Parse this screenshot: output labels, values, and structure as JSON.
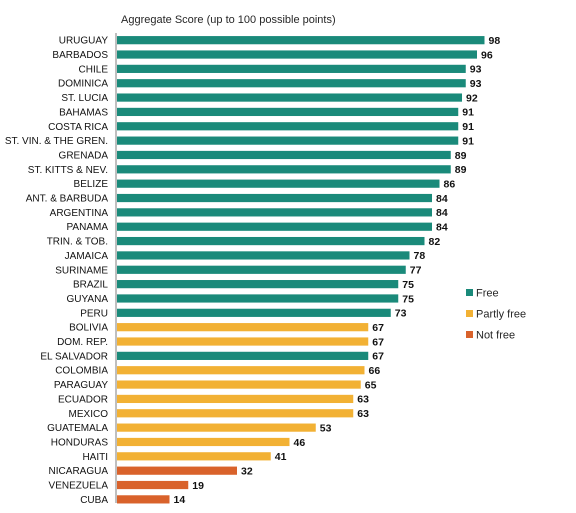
{
  "chart_data": {
    "type": "bar",
    "orientation": "horizontal",
    "title": "Aggregate Score (up to 100 possible points)",
    "xlim": [
      0,
      100
    ],
    "grid": false,
    "legend_position": "right",
    "colors": {
      "Free": "#1a8a7a",
      "Partly free": "#f2b134",
      "Not free": "#d9622b"
    },
    "legend": [
      {
        "label": "Free",
        "status": "Free"
      },
      {
        "label": "Partly free",
        "status": "Partly free"
      },
      {
        "label": "Not free",
        "status": "Not free"
      }
    ],
    "bars": [
      {
        "category": "URUGUAY",
        "value": 98,
        "status": "Free"
      },
      {
        "category": "BARBADOS",
        "value": 96,
        "status": "Free"
      },
      {
        "category": "CHILE",
        "value": 93,
        "status": "Free"
      },
      {
        "category": "DOMINICA",
        "value": 93,
        "status": "Free"
      },
      {
        "category": "ST. LUCIA",
        "value": 92,
        "status": "Free"
      },
      {
        "category": "BAHAMAS",
        "value": 91,
        "status": "Free"
      },
      {
        "category": "COSTA RICA",
        "value": 91,
        "status": "Free"
      },
      {
        "category": "ST. VIN. & THE GREN.",
        "value": 91,
        "status": "Free"
      },
      {
        "category": "GRENADA",
        "value": 89,
        "status": "Free"
      },
      {
        "category": "ST. KITTS & NEV.",
        "value": 89,
        "status": "Free"
      },
      {
        "category": "BELIZE",
        "value": 86,
        "status": "Free"
      },
      {
        "category": "ANT. & BARBUDA",
        "value": 84,
        "status": "Free"
      },
      {
        "category": "ARGENTINA",
        "value": 84,
        "status": "Free"
      },
      {
        "category": "PANAMA",
        "value": 84,
        "status": "Free"
      },
      {
        "category": "TRIN. & TOB.",
        "value": 82,
        "status": "Free"
      },
      {
        "category": "JAMAICA",
        "value": 78,
        "status": "Free"
      },
      {
        "category": "SURINAME",
        "value": 77,
        "status": "Free"
      },
      {
        "category": "BRAZIL",
        "value": 75,
        "status": "Free"
      },
      {
        "category": "GUYANA",
        "value": 75,
        "status": "Free"
      },
      {
        "category": "PERU",
        "value": 73,
        "status": "Free"
      },
      {
        "category": "BOLIVIA",
        "value": 67,
        "status": "Partly free"
      },
      {
        "category": "DOM. REP.",
        "value": 67,
        "status": "Partly free"
      },
      {
        "category": "EL SALVADOR",
        "value": 67,
        "status": "Free"
      },
      {
        "category": "COLOMBIA",
        "value": 66,
        "status": "Partly free"
      },
      {
        "category": "PARAGUAY",
        "value": 65,
        "status": "Partly free"
      },
      {
        "category": "ECUADOR",
        "value": 63,
        "status": "Partly free"
      },
      {
        "category": "MEXICO",
        "value": 63,
        "status": "Partly free"
      },
      {
        "category": "GUATEMALA",
        "value": 53,
        "status": "Partly free"
      },
      {
        "category": "HONDURAS",
        "value": 46,
        "status": "Partly free"
      },
      {
        "category": "HAITI",
        "value": 41,
        "status": "Partly free"
      },
      {
        "category": "NICARAGUA",
        "value": 32,
        "status": "Not free"
      },
      {
        "category": "VENEZUELA",
        "value": 19,
        "status": "Not free"
      },
      {
        "category": "CUBA",
        "value": 14,
        "status": "Not free"
      }
    ]
  }
}
